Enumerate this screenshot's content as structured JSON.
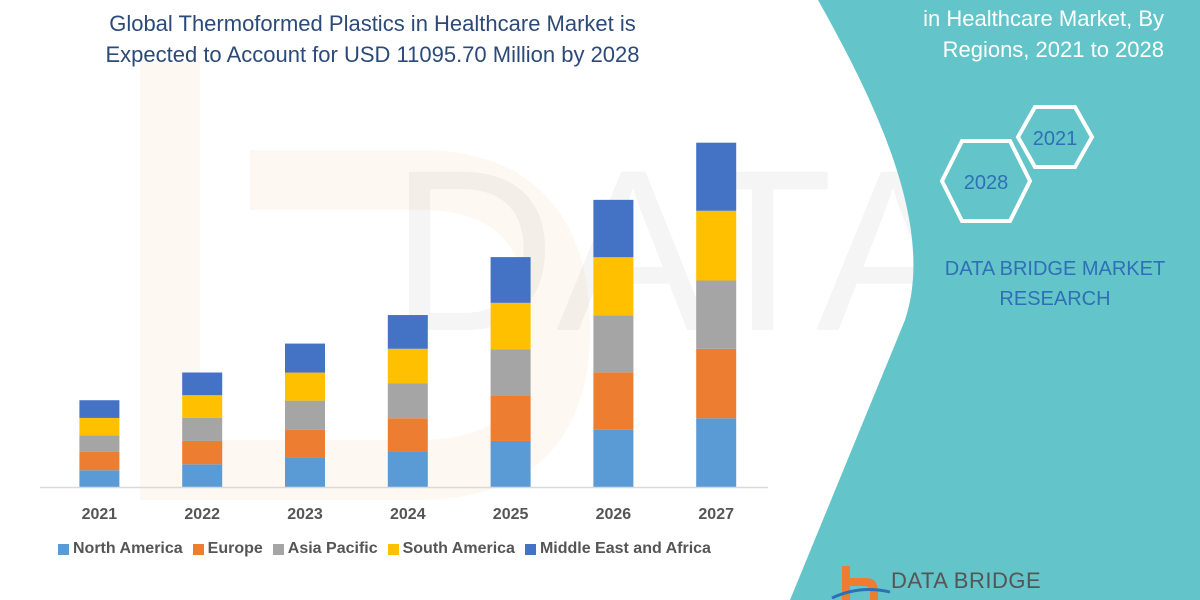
{
  "header": {
    "title_line1": "Global Thermoformed Plastics in Healthcare Market is",
    "title_line2": "Expected to Account for USD 11095.70 Million by 2028"
  },
  "side_panel": {
    "title_line1": "in Healthcare Market, By",
    "title_line2": "Regions, 2021 to 2028",
    "hex_start_year": "2021",
    "hex_end_year": "2028",
    "brand_line1": "DATA BRIDGE MARKET",
    "brand_line2": "RESEARCH",
    "logo_text": "DATA BRIDGE",
    "panel_color": "#63c5c9"
  },
  "chart_data": {
    "type": "bar",
    "stacked": true,
    "title": "Global Thermoformed Plastics in Healthcare Market is Expected to Account for USD 11095.70 Million by 2028",
    "xlabel": "",
    "ylabel": "",
    "ylim": [
      0,
      350
    ],
    "grid": false,
    "y_axis_shown": false,
    "legend_position": "bottom",
    "categories": [
      "2021",
      "2022",
      "2023",
      "2024",
      "2025",
      "2026",
      "2027"
    ],
    "series": [
      {
        "name": "North America",
        "color": "#5b9bd5",
        "values": [
          16.7,
          22.7,
          29,
          35,
          46,
          57.3,
          68.7
        ]
      },
      {
        "name": "Europe",
        "color": "#ed7d31",
        "values": [
          18.3,
          23.3,
          28.3,
          33.7,
          45.7,
          57.3,
          69.3
        ]
      },
      {
        "name": "Asia Pacific",
        "color": "#a5a5a5",
        "values": [
          16.7,
          23,
          29,
          34.7,
          46,
          57,
          68.3
        ]
      },
      {
        "name": "South America",
        "color": "#ffc000",
        "values": [
          17.3,
          22.7,
          28,
          34.7,
          46.3,
          58,
          69.7
        ]
      },
      {
        "name": "Middle East and Africa",
        "color": "#4472c4",
        "values": [
          17.7,
          22.7,
          29,
          33.7,
          45.7,
          57.3,
          68
        ]
      }
    ]
  }
}
